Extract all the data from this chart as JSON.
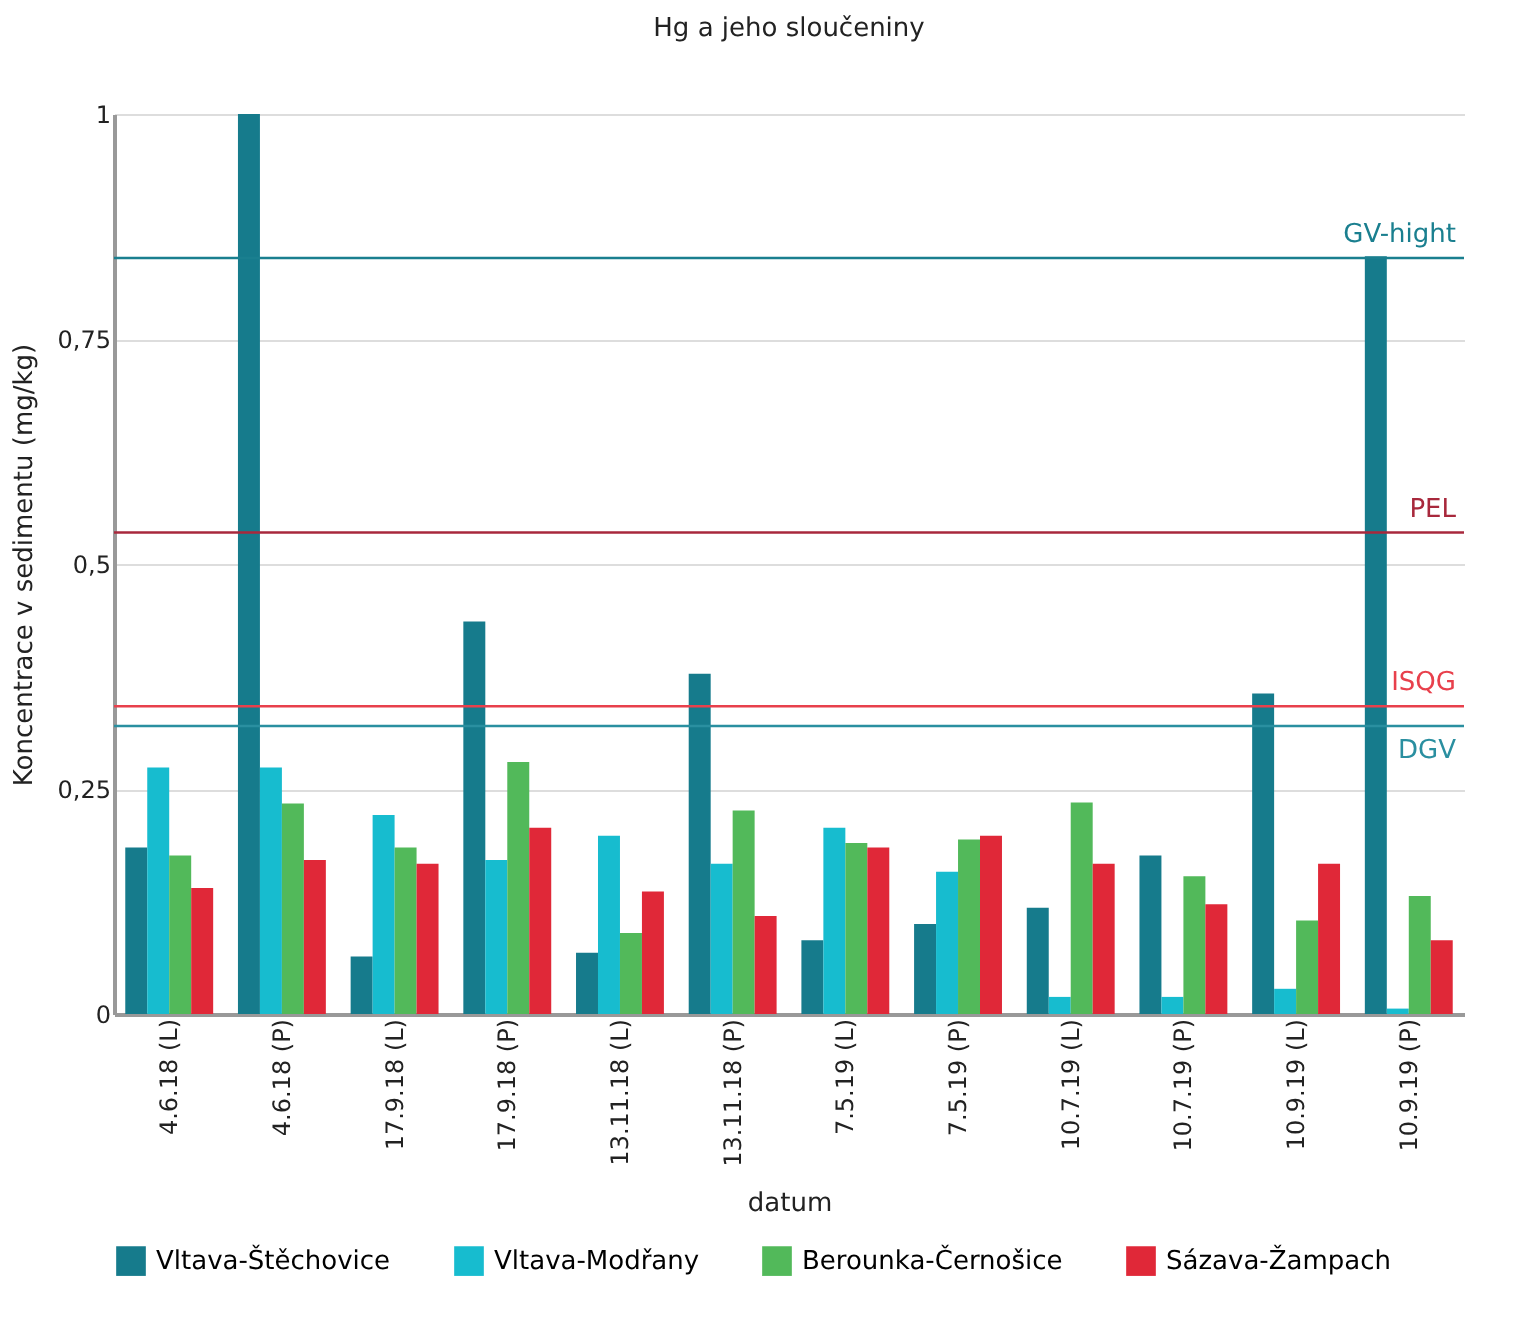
{
  "chart_data": {
    "type": "bar",
    "title": "Hg a jeho sloučeniny",
    "xlabel": "datum",
    "ylabel": "Koncentrace v sedimentu (mg/kg)",
    "categories": [
      "4.6.18 (L)",
      "4.6.18 (P)",
      "17.9.18 (L)",
      "17.9.18 (P)",
      "13.11.18 (L)",
      "13.11.18 (P)",
      "7.5.19 (L)",
      "7.5.19 (P)",
      "10.7.19 (L)",
      "10.7.19 (P)",
      "10.9.19 (L)",
      "10.9.19 (P)"
    ],
    "series": [
      {
        "name": "Vltava-Štěchovice",
        "color": "#167b8c",
        "values": [
          0.185,
          1.0,
          0.064,
          0.436,
          0.068,
          0.378,
          0.082,
          0.1,
          0.118,
          0.176,
          0.356,
          0.842
        ]
      },
      {
        "name": "Vltava-Modřany",
        "color": "#17bccf",
        "values": [
          0.274,
          0.274,
          0.221,
          0.171,
          0.198,
          0.167,
          0.207,
          0.158,
          0.019,
          0.019,
          0.028,
          0.006
        ]
      },
      {
        "name": "Berounka-Černošice",
        "color": "#52b95a",
        "values": [
          0.176,
          0.234,
          0.185,
          0.28,
          0.09,
          0.226,
          0.19,
          0.194,
          0.235,
          0.153,
          0.104,
          0.131
        ]
      },
      {
        "name": "Sázava-Žampach",
        "color": "#e02838",
        "values": [
          0.14,
          0.171,
          0.167,
          0.207,
          0.136,
          0.109,
          0.185,
          0.198,
          0.167,
          0.122,
          0.167,
          0.082
        ]
      }
    ],
    "ylim": [
      0,
      1
    ],
    "yticks": [
      0,
      {
        "value": 0.25,
        "label": "0,25"
      },
      {
        "value": 0.5,
        "label": "0,5"
      },
      {
        "value": 0.75,
        "label": "0,75"
      },
      1
    ],
    "grid": "y",
    "legend": "bottom",
    "ref_lines": [
      {
        "axis": "y",
        "value": 0.84,
        "label": "GV-hight",
        "color": "#1a7f8f"
      },
      {
        "axis": "y",
        "value": 0.535,
        "label": "PEL",
        "color": "#a8283c"
      },
      {
        "axis": "y",
        "value": 0.342,
        "label": "ISQG",
        "color": "#e8404c"
      },
      {
        "axis": "y",
        "value": 0.32,
        "label": "DGV",
        "color": "#2a8fa0"
      }
    ]
  }
}
